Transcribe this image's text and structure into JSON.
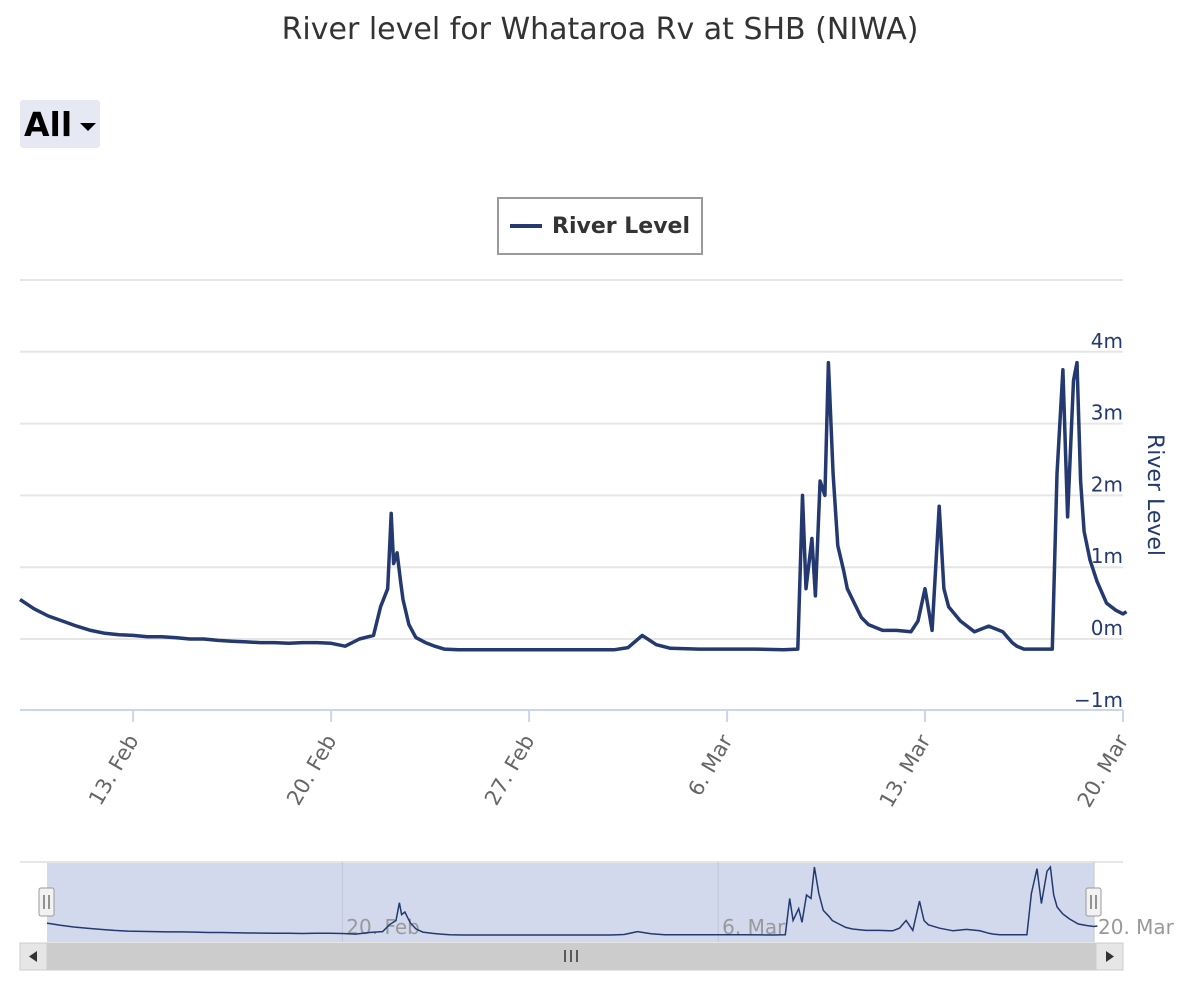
{
  "title": "River level for Whataroa Rv at SHB (NIWA)",
  "range_selector": {
    "selected": "All"
  },
  "colors": {
    "series": "#23396f",
    "grid": "#e6e6e6",
    "navigator_fill": "#d2d9ed"
  },
  "icons": {
    "dropdown": "caret-down-icon",
    "scroll_left": "triangle-left-icon",
    "scroll_right": "triangle-right-icon",
    "handle": "grip-icon"
  },
  "chart_data": {
    "type": "line",
    "title": "River level for Whataroa Rv at SHB (NIWA)",
    "legend": {
      "entries": [
        "River Level"
      ],
      "placement": "top-center"
    },
    "grid": true,
    "xaxis": {
      "type": "datetime",
      "range": [
        "2023-02-09",
        "2023-03-20"
      ],
      "tick_labels": [
        "13. Feb",
        "20. Feb",
        "27. Feb",
        "6. Mar",
        "13. Mar",
        "20. Mar"
      ],
      "tick_dates": [
        "2023-02-13",
        "2023-02-20",
        "2023-02-27",
        "2023-03-06",
        "2023-03-13",
        "2023-03-20"
      ]
    },
    "yaxis": {
      "title": "River Level",
      "position": "right",
      "range": [
        -1,
        4
      ],
      "tick_values": [
        -1,
        0,
        1,
        2,
        3,
        4
      ],
      "tick_labels": [
        "−1m",
        "0m",
        "1m",
        "2m",
        "3m",
        "4m"
      ]
    },
    "series": [
      {
        "name": "River Level",
        "x": [
          "2023-02-09 00:00",
          "2023-02-09 12:00",
          "2023-02-10 00:00",
          "2023-02-10 12:00",
          "2023-02-11 00:00",
          "2023-02-11 12:00",
          "2023-02-12 00:00",
          "2023-02-12 12:00",
          "2023-02-13 00:00",
          "2023-02-13 12:00",
          "2023-02-14 00:00",
          "2023-02-14 12:00",
          "2023-02-15 00:00",
          "2023-02-15 12:00",
          "2023-02-16 00:00",
          "2023-02-16 12:00",
          "2023-02-17 00:00",
          "2023-02-17 12:00",
          "2023-02-18 00:00",
          "2023-02-18 12:00",
          "2023-02-19 00:00",
          "2023-02-19 12:00",
          "2023-02-20 00:00",
          "2023-02-20 12:00",
          "2023-02-21 00:00",
          "2023-02-21 12:00",
          "2023-02-21 18:00",
          "2023-02-22 00:00",
          "2023-02-22 03:00",
          "2023-02-22 05:00",
          "2023-02-22 08:00",
          "2023-02-22 11:00",
          "2023-02-22 13:00",
          "2023-02-22 18:00",
          "2023-02-23 00:00",
          "2023-02-23 08:00",
          "2023-02-23 16:00",
          "2023-02-24 00:00",
          "2023-02-24 12:00",
          "2023-02-25 00:00",
          "2023-02-25 12:00",
          "2023-02-26 00:00",
          "2023-02-27 00:00",
          "2023-02-28 00:00",
          "2023-03-01 00:00",
          "2023-03-02 00:00",
          "2023-03-02 12:00",
          "2023-03-03 00:00",
          "2023-03-03 12:00",
          "2023-03-04 00:00",
          "2023-03-05 00:00",
          "2023-03-06 00:00",
          "2023-03-07 00:00",
          "2023-03-08 00:00",
          "2023-03-08 12:00",
          "2023-03-08 16:00",
          "2023-03-08 19:00",
          "2023-03-09 00:00",
          "2023-03-09 03:00",
          "2023-03-09 07:00",
          "2023-03-09 11:00",
          "2023-03-09 14:00",
          "2023-03-09 18:00",
          "2023-03-09 22:00",
          "2023-03-10 03:00",
          "2023-03-10 06:00",
          "2023-03-10 12:00",
          "2023-03-10 18:00",
          "2023-03-11 00:00",
          "2023-03-11 12:00",
          "2023-03-12 00:00",
          "2023-03-12 12:00",
          "2023-03-12 18:00",
          "2023-03-13 00:00",
          "2023-03-13 06:00",
          "2023-03-13 12:00",
          "2023-03-13 16:00",
          "2023-03-13 20:00",
          "2023-03-14 06:00",
          "2023-03-14 18:00",
          "2023-03-15 06:00",
          "2023-03-15 18:00",
          "2023-03-16 02:00",
          "2023-03-16 06:00",
          "2023-03-16 12:00",
          "2023-03-17 00:00",
          "2023-03-17 12:00",
          "2023-03-17 16:00",
          "2023-03-17 21:00",
          "2023-03-18 01:00",
          "2023-03-18 06:00",
          "2023-03-18 09:00",
          "2023-03-18 12:00",
          "2023-03-18 15:00",
          "2023-03-18 20:00",
          "2023-03-19 02:00",
          "2023-03-19 10:00",
          "2023-03-19 18:00",
          "2023-03-20 00:00",
          "2023-03-20 03:00"
        ],
        "y": [
          0.55,
          0.42,
          0.32,
          0.25,
          0.18,
          0.12,
          0.08,
          0.06,
          0.05,
          0.03,
          0.03,
          0.02,
          0.0,
          0.0,
          -0.02,
          -0.03,
          -0.04,
          -0.05,
          -0.05,
          -0.06,
          -0.05,
          -0.05,
          -0.06,
          -0.1,
          0.0,
          0.05,
          0.45,
          0.7,
          1.75,
          1.05,
          1.2,
          0.8,
          0.55,
          0.2,
          0.02,
          -0.05,
          -0.1,
          -0.14,
          -0.15,
          -0.15,
          -0.15,
          -0.15,
          -0.15,
          -0.15,
          -0.15,
          -0.15,
          -0.12,
          0.05,
          -0.08,
          -0.13,
          -0.14,
          -0.14,
          -0.14,
          -0.15,
          -0.14,
          2.0,
          0.7,
          1.4,
          0.6,
          2.2,
          2.0,
          3.85,
          2.3,
          1.3,
          0.95,
          0.7,
          0.5,
          0.3,
          0.2,
          0.12,
          0.12,
          0.1,
          0.25,
          0.7,
          0.12,
          1.85,
          0.7,
          0.45,
          0.25,
          0.1,
          0.18,
          0.1,
          -0.05,
          -0.1,
          -0.14,
          -0.14,
          -0.14,
          2.3,
          3.75,
          1.7,
          3.6,
          3.85,
          2.2,
          1.5,
          1.1,
          0.8,
          0.5,
          0.4,
          0.35,
          0.38
        ]
      }
    ],
    "navigator": {
      "tick_labels": [
        "20. Feb",
        "6. Mar",
        "20. Mar"
      ],
      "tick_dates": [
        "2023-02-20",
        "2023-03-06",
        "2023-03-20"
      ],
      "selected_range": [
        "2023-02-09",
        "2023-03-20"
      ]
    }
  }
}
